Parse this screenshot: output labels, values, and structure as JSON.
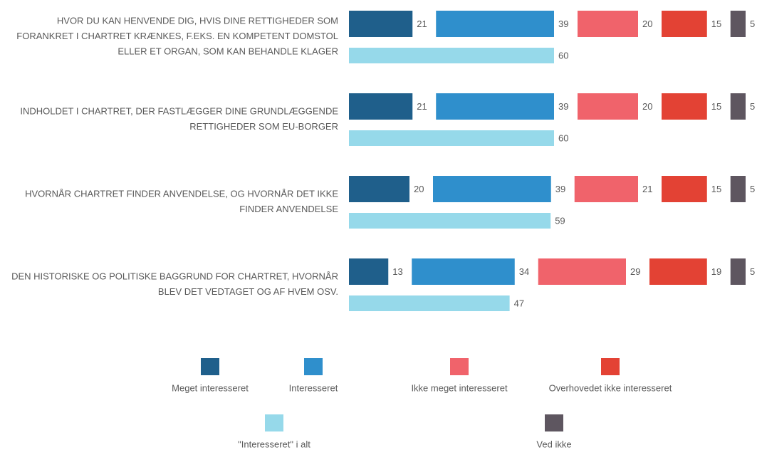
{
  "chart_data": {
    "type": "bar",
    "categories": [
      "HVOR DU KAN HENVENDE DIG, HVIS DINE RETTIGHEDER SOM FORANKRET I CHARTRET KRÆNKES, F.EKS. EN KOMPETENT DOMSTOL ELLER ET ORGAN, SOM KAN BEHANDLE KLAGER",
      "INDHOLDET I CHARTRET, DER FASTLÆGGER DINE GRUNDLÆGGENDE RETTIGHEDER SOM EU-BORGER",
      "HVORNÅR CHARTRET FINDER ANVENDELSE, OG HVORNÅR DET IKKE FINDER ANVENDELSE",
      "DEN HISTORISKE OG POLITISKE BAGGRUND FOR CHARTRET, HVORNÅR BLEV DET VEDTAGET OG AF HVEM OSV."
    ],
    "series": [
      {
        "name": "Meget interesseret",
        "color": "#1f5f8b",
        "values": [
          21,
          21,
          20,
          13
        ]
      },
      {
        "name": "Interesseret",
        "color": "#2f8fcc",
        "values": [
          39,
          39,
          39,
          34
        ]
      },
      {
        "name": "Ikke meget interesseret",
        "color": "#f0636b",
        "values": [
          20,
          20,
          21,
          29
        ]
      },
      {
        "name": "Overhovedet ikke interesseret",
        "color": "#e34234",
        "values": [
          15,
          15,
          15,
          19
        ]
      },
      {
        "name": "Ved ikke",
        "color": "#5e5660",
        "values": [
          5,
          5,
          5,
          5
        ]
      },
      {
        "name": "\"Interesseret\" i alt",
        "color": "#96d9ea",
        "values": [
          60,
          60,
          59,
          47
        ]
      }
    ]
  }
}
